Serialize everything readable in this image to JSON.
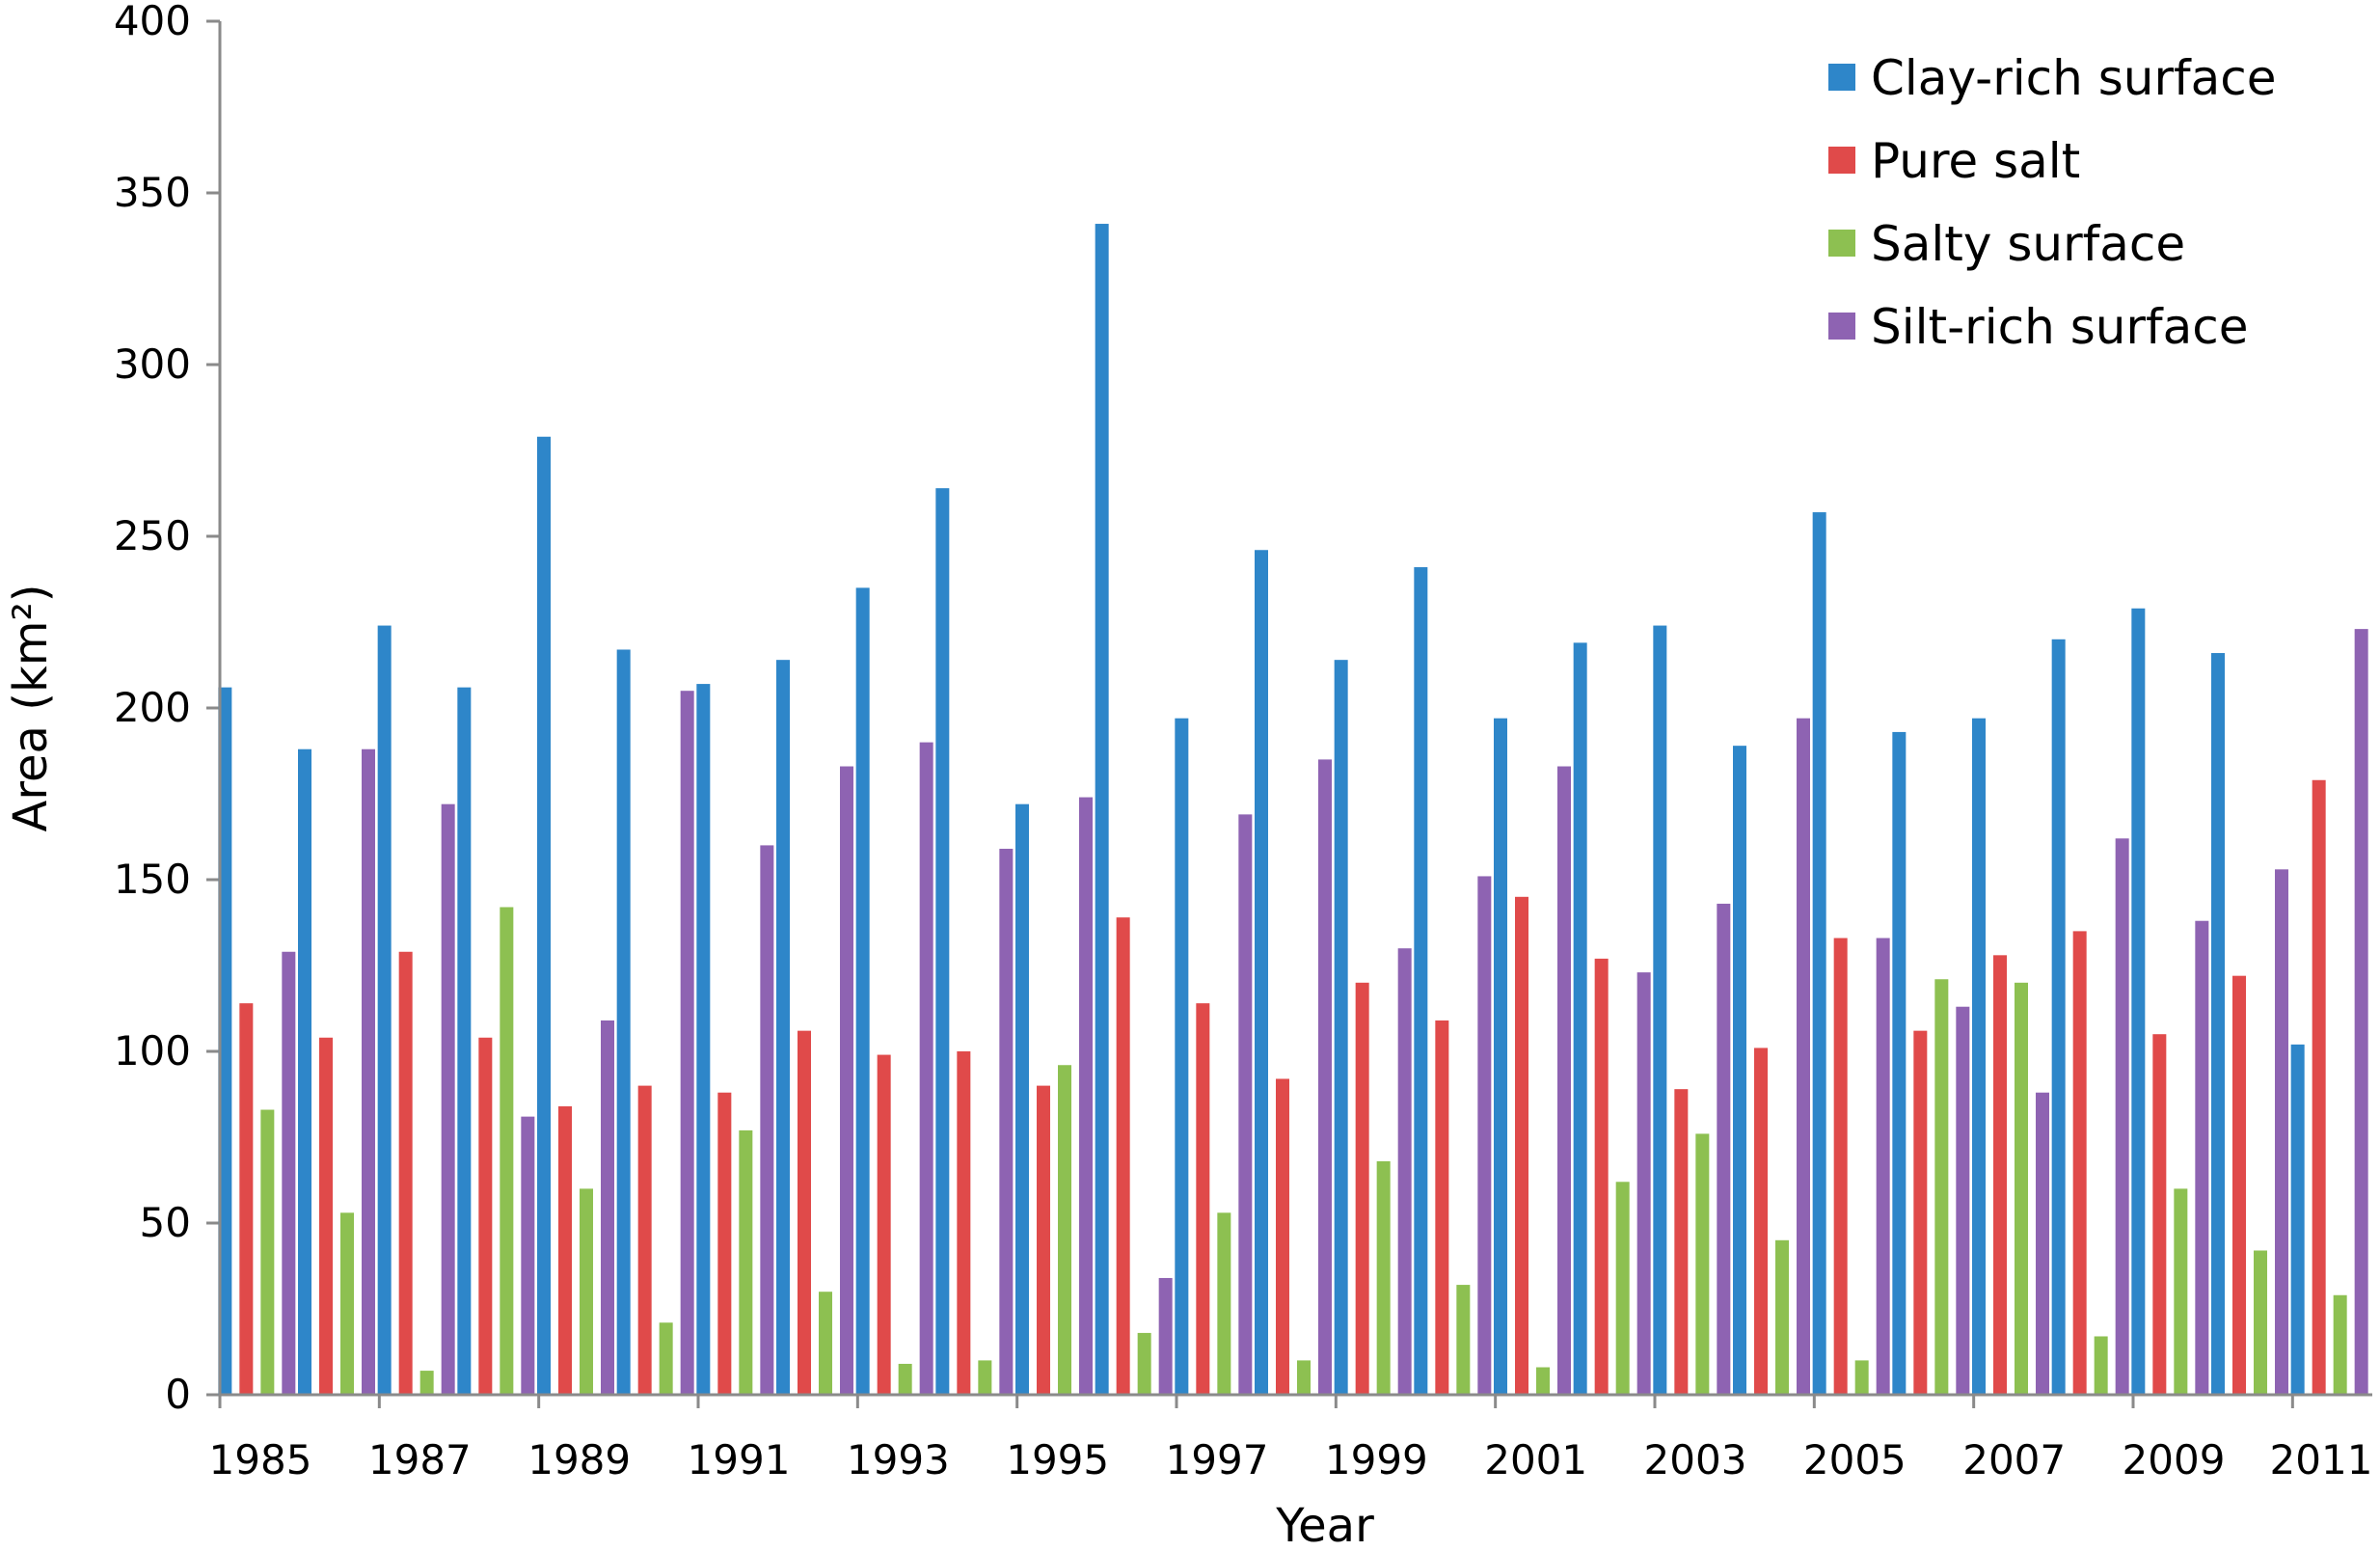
{
  "chart_data": {
    "type": "bar",
    "title": "",
    "xlabel": "Year",
    "ylabel": "Area (km²)",
    "ylim": [
      0,
      400
    ],
    "yticks": [
      0,
      50,
      100,
      150,
      200,
      250,
      300,
      350,
      400
    ],
    "xtick_labels": [
      "1985",
      "1987",
      "1989",
      "1991",
      "1993",
      "1995",
      "1997",
      "1999",
      "2001",
      "2003",
      "2005",
      "2007",
      "2009",
      "2011"
    ],
    "grid": false,
    "legend_position": "top-right",
    "categories": [
      "1985",
      "1986",
      "1987",
      "1988",
      "1989",
      "1990",
      "1991",
      "1992",
      "1993",
      "1994",
      "1995",
      "1996",
      "1997",
      "1998",
      "1999",
      "2000",
      "2001",
      "2002",
      "2003",
      "2004",
      "2005",
      "2006",
      "2007",
      "2008",
      "2009",
      "2010",
      "2011"
    ],
    "series": [
      {
        "name": "Clay-rich surface",
        "color": "#2E86C9",
        "values": [
          206,
          188,
          224,
          206,
          279,
          217,
          207,
          214,
          235,
          264,
          172,
          341,
          197,
          246,
          214,
          241,
          197,
          219,
          224,
          189,
          257,
          193,
          197,
          220,
          229,
          216,
          102
        ]
      },
      {
        "name": "Pure salt",
        "color": "#E04A4A",
        "values": [
          114,
          104,
          129,
          104,
          84,
          90,
          88,
          106,
          99,
          100,
          90,
          139,
          114,
          92,
          120,
          109,
          145,
          127,
          89,
          101,
          133,
          106,
          128,
          135,
          105,
          122,
          179
        ]
      },
      {
        "name": "Salty surface",
        "color": "#8DC051",
        "values": [
          83,
          53,
          7,
          142,
          60,
          21,
          77,
          30,
          9,
          10,
          96,
          18,
          53,
          10,
          68,
          32,
          8,
          62,
          76,
          45,
          10,
          121,
          120,
          17,
          60,
          42,
          29
        ]
      },
      {
        "name": "Silt-rich surface",
        "color": "#8E63B2",
        "values": [
          129,
          188,
          172,
          81,
          109,
          205,
          160,
          183,
          190,
          159,
          174,
          34,
          169,
          185,
          130,
          151,
          183,
          123,
          143,
          197,
          133,
          113,
          88,
          162,
          138,
          153,
          223
        ]
      }
    ]
  }
}
